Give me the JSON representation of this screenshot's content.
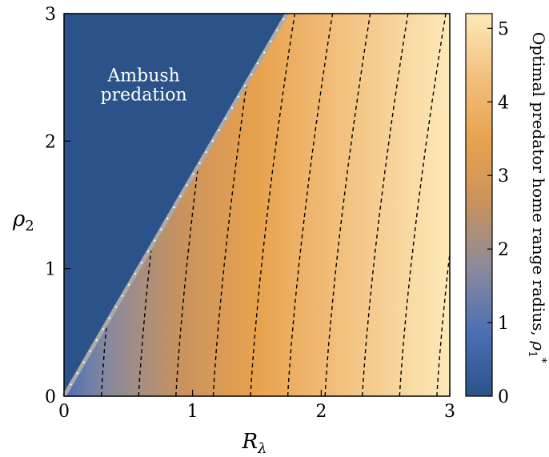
{
  "chart_data": {
    "type": "heatmap",
    "title": "",
    "xlabel": "R",
    "xlabel_sub": "λ",
    "ylabel": "ρ",
    "ylabel_sub": "2",
    "xlim": [
      0,
      3
    ],
    "ylim": [
      0,
      3
    ],
    "xticks": [
      0,
      1,
      2,
      3
    ],
    "yticks": [
      0,
      1,
      2,
      3
    ],
    "colorbar": {
      "label": "Optimal predator home range radius, ",
      "label_symbol": "ρ",
      "label_sub": "1",
      "label_sup": "*",
      "range": [
        0,
        5.2
      ],
      "ticks": [
        0,
        1,
        2,
        3,
        4,
        5
      ],
      "colors": [
        "#2b5389",
        "#4c6fb5",
        "#8a8a9c",
        "#c8925e",
        "#e8a24e",
        "#f2c07e",
        "#fde9b8"
      ]
    },
    "boundary": {
      "description_values": "Ambush region boundary line rho2 = 1.73 * R_lambda",
      "slope": 1.73,
      "color": "#aaaaaa"
    },
    "region_color": "#2b5389",
    "annotation": {
      "line1": "Ambush",
      "line2": "predation",
      "x": 0.62,
      "y": 2.47
    },
    "contours": [
      {
        "level": 0.25,
        "x0": 0.29
      },
      {
        "level": 0.5,
        "x0": 0.58
      },
      {
        "level": 0.75,
        "x0": 0.87
      },
      {
        "level": 1.0,
        "x0": 1.16
      },
      {
        "level": 1.25,
        "x0": 1.45
      },
      {
        "level": 1.5,
        "x0": 1.74
      },
      {
        "level": 1.75,
        "x0": 2.03
      },
      {
        "level": 2.0,
        "x0": 2.32
      },
      {
        "level": 2.25,
        "x0": 2.61
      },
      {
        "level": 2.5,
        "x0": 2.9
      }
    ],
    "contour_style": "dashed",
    "contour_color": "#000000"
  }
}
